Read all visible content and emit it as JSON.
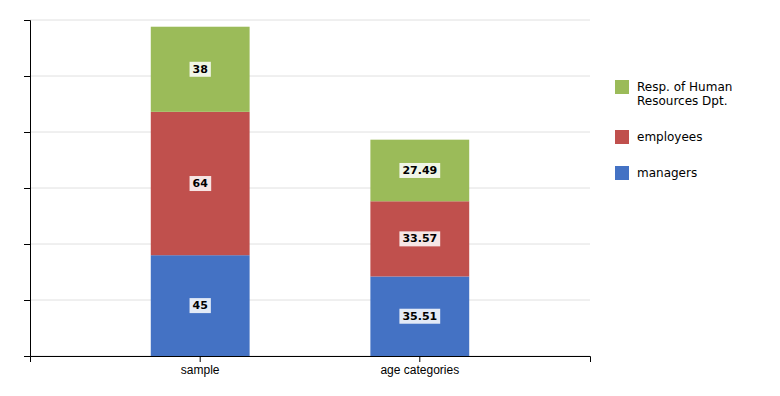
{
  "chart_data": {
    "type": "bar",
    "stacked": true,
    "categories": [
      "sample",
      "age categories"
    ],
    "series": [
      {
        "name": "managers",
        "color": "#4472C4",
        "values": [
          45,
          35.51
        ]
      },
      {
        "name": "employees",
        "color": "#C0504D",
        "values": [
          64,
          33.57
        ]
      },
      {
        "name": "Resp. of Human\nResources Dpt.",
        "color": "#9BBB59",
        "values": [
          38,
          27.49
        ]
      }
    ],
    "ylim": [
      0,
      150
    ],
    "yticks": [
      0,
      25,
      50,
      75,
      100,
      125,
      150
    ],
    "grid": true,
    "tick_labels": "x",
    "legend": "right",
    "data_labels": true
  }
}
